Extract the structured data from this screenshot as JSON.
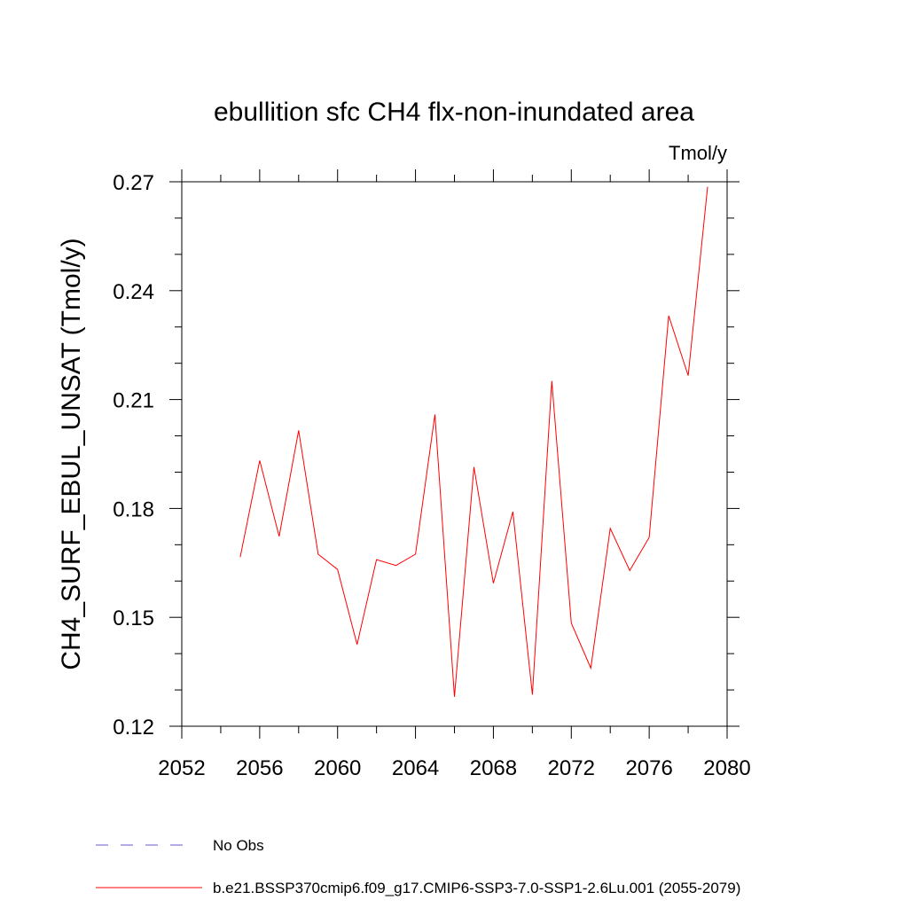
{
  "chart_data": {
    "type": "line",
    "title": "ebullition sfc CH4 flx-non-inundated area",
    "units_label": "Tmol/y",
    "ylabel": "CH4_SURF_EBUL_UNSAT  (Tmol/y)",
    "xlabel": "",
    "xlim": [
      2052,
      2080
    ],
    "ylim": [
      0.12,
      0.27
    ],
    "x_ticks": [
      "2052",
      "2056",
      "2060",
      "2064",
      "2068",
      "2072",
      "2076",
      "2080"
    ],
    "y_ticks": [
      "0.12",
      "0.15",
      "0.18",
      "0.21",
      "0.24",
      "0.27"
    ],
    "grid": false,
    "series": [
      {
        "name": "b.e21.BSSP370cmip6.f09_g17.CMIP6-SSP3-7.0-SSP1-2.6Lu.001 (2055-2079)",
        "color": "#ff0000",
        "x": [
          2055,
          2056,
          2057,
          2058,
          2059,
          2060,
          2061,
          2062,
          2063,
          2064,
          2065,
          2066,
          2067,
          2068,
          2069,
          2070,
          2071,
          2072,
          2073,
          2074,
          2075,
          2076,
          2077,
          2078,
          2079
        ],
        "values": [
          0.1666,
          0.1932,
          0.1723,
          0.2015,
          0.1674,
          0.1632,
          0.1425,
          0.1659,
          0.1643,
          0.1674,
          0.2059,
          0.1281,
          0.1914,
          0.1594,
          0.1791,
          0.1287,
          0.2151,
          0.1484,
          0.136,
          0.1745,
          0.1629,
          0.172,
          0.2331,
          0.2166,
          0.2686
        ]
      }
    ],
    "legend": [
      {
        "label": "No Obs",
        "color": "#6a5acd",
        "style": "dashed"
      },
      {
        "label": "b.e21.BSSP370cmip6.f09_g17.CMIP6-SSP3-7.0-SSP1-2.6Lu.001 (2055-2079)",
        "color": "#ff0000",
        "style": "solid"
      }
    ]
  }
}
